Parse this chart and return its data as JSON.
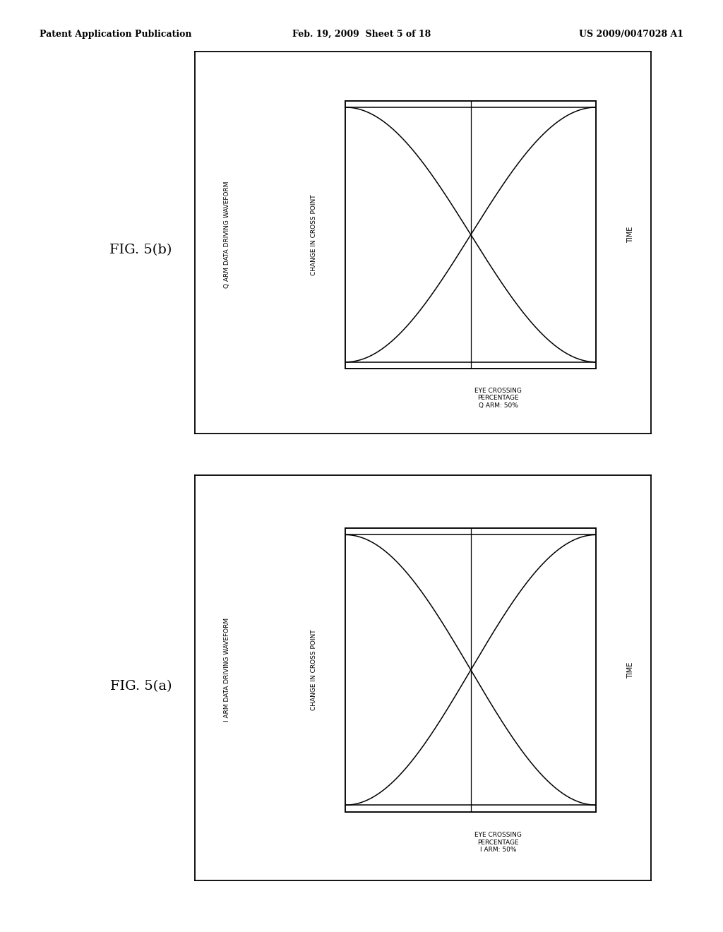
{
  "page_header_left": "Patent Application Publication",
  "page_header_center": "Feb. 19, 2009  Sheet 5 of 18",
  "page_header_right": "US 2009/0047028 A1",
  "fig_a_label": "FIG. 5(a)",
  "fig_b_label": "FIG. 5(b)",
  "panel_a": {
    "ylabel_outer": "I ARM DATA DRIVING WAVEFORM",
    "ylabel_inner": "CHANGE IN CROSS POINT",
    "xlabel_inner": "EYE CROSSING\nPERCENTAGE\nI ARM: 50%",
    "xlabel_outer": "TIME"
  },
  "panel_b": {
    "ylabel_outer": "Q ARM DATA DRIVING WAVEFORM",
    "ylabel_inner": "CHANGE IN CROSS POINT",
    "xlabel_inner": "EYE CROSSING\nPERCENTAGE\nQ ARM: 50%",
    "xlabel_outer": "TIME"
  },
  "background_color": "#ffffff",
  "border_color": "#000000",
  "line_color": "#000000",
  "header_font_size": 9,
  "label_font_size": 7,
  "inner_label_font_size": 6.5,
  "fig_label_font_size": 14,
  "outer_ylabel_font_size": 6.5,
  "time_font_size": 7
}
